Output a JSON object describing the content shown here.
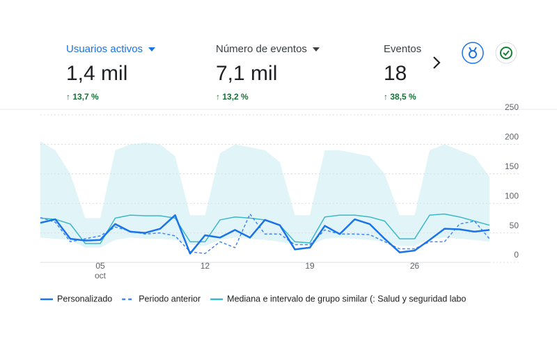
{
  "metrics": [
    {
      "label": "Usuarios activos",
      "value": "1,4 mil",
      "change": "13,7 %"
    },
    {
      "label": "Número de eventos",
      "value": "7,1 mil",
      "change": "13,2 %"
    },
    {
      "label": "Eventos",
      "value": "18",
      "change": "38,5 %"
    }
  ],
  "chart_data": {
    "type": "line",
    "x": [
      1,
      2,
      3,
      4,
      5,
      6,
      7,
      8,
      9,
      10,
      11,
      12,
      13,
      14,
      15,
      16,
      17,
      18,
      19,
      20,
      21,
      22,
      23,
      24,
      25,
      26,
      27,
      28,
      29,
      30,
      31
    ],
    "xlim": [
      1,
      31
    ],
    "xticks": [
      {
        "value": 5,
        "label": "05"
      },
      {
        "value": 12,
        "label": "12"
      },
      {
        "value": 19,
        "label": "19"
      },
      {
        "value": 26,
        "label": "26"
      }
    ],
    "x_sublabel": "oct",
    "ylim": [
      0,
      250
    ],
    "yticks": [
      0,
      50,
      100,
      150,
      200,
      250
    ],
    "grid": true,
    "series": [
      {
        "name": "Personalizado",
        "color": "#1a73e8",
        "style": "solid",
        "values": [
          67,
          73,
          40,
          37,
          38,
          65,
          52,
          50,
          57,
          80,
          15,
          46,
          42,
          55,
          42,
          72,
          63,
          22,
          25,
          62,
          48,
          73,
          65,
          40,
          17,
          20,
          38,
          57,
          56,
          52,
          55
        ]
      },
      {
        "name": "Periodo anterior",
        "color": "#4285f4",
        "style": "dashed",
        "values": [
          76,
          68,
          35,
          40,
          45,
          60,
          53,
          48,
          50,
          45,
          18,
          15,
          35,
          25,
          82,
          48,
          48,
          30,
          30,
          55,
          48,
          48,
          47,
          35,
          23,
          23,
          35,
          35,
          65,
          70,
          40
        ]
      },
      {
        "name": "Mediana e intervalo de grupo similar (: Salud y seguridad labo",
        "color": "#3bb8c8",
        "style": "solid",
        "values": [
          75,
          73,
          65,
          32,
          32,
          75,
          80,
          79,
          79,
          75,
          35,
          35,
          72,
          77,
          75,
          72,
          63,
          35,
          33,
          77,
          80,
          80,
          77,
          70,
          40,
          40,
          80,
          82,
          77,
          70,
          63
        ]
      }
    ],
    "band": {
      "color": "#e1f5f8",
      "upper": [
        205,
        190,
        150,
        75,
        75,
        190,
        200,
        203,
        200,
        180,
        80,
        80,
        185,
        200,
        195,
        190,
        170,
        80,
        80,
        190,
        190,
        185,
        180,
        150,
        80,
        80,
        190,
        200,
        190,
        180,
        145
      ],
      "lower": [
        42,
        40,
        38,
        25,
        25,
        38,
        42,
        40,
        40,
        38,
        30,
        28,
        38,
        42,
        40,
        38,
        35,
        30,
        28,
        40,
        42,
        40,
        38,
        35,
        28,
        28,
        40,
        42,
        40,
        38,
        35
      ]
    }
  }
}
